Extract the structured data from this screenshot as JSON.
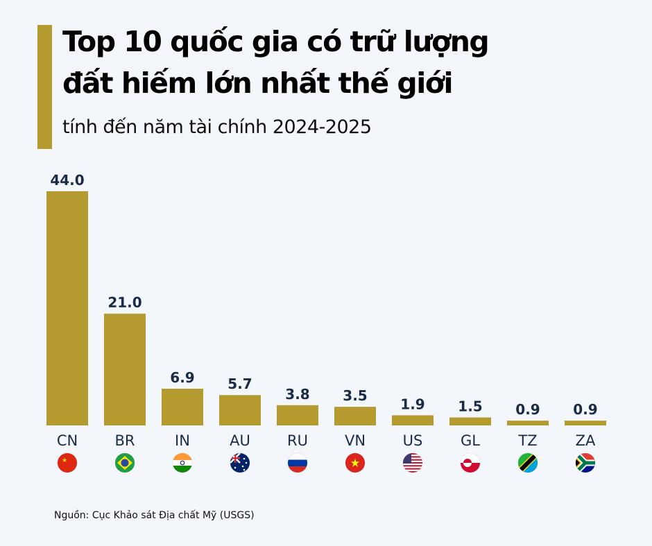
{
  "title_lines": [
    "Top 10 quốc gia có trữ lượng",
    "đất hiếm lớn nhất thế giới"
  ],
  "subtitle": "tính đến năm tài chính 2024-2025",
  "source": "Nguồn: Cục Khảo sát Địa chất Mỹ (USGS)",
  "colors": {
    "bar": "#b59a30",
    "value_label": "#1a2b45",
    "category_label": "#1a2b45",
    "background": "#f3f6fa"
  },
  "chart_data": {
    "type": "bar",
    "categories": [
      "CN",
      "BR",
      "IN",
      "AU",
      "RU",
      "VN",
      "US",
      "GL",
      "TZ",
      "ZA"
    ],
    "flags": [
      "china-flag",
      "brazil-flag",
      "india-flag",
      "australia-flag",
      "russia-flag",
      "vietnam-flag",
      "usa-flag",
      "greenland-flag",
      "tanzania-flag",
      "south-africa-flag"
    ],
    "values": [
      44.0,
      21.0,
      6.9,
      5.7,
      3.8,
      3.5,
      1.9,
      1.5,
      0.9,
      0.9
    ],
    "value_labels": [
      "44.0",
      "21.0",
      "6.9",
      "5.7",
      "3.8",
      "3.5",
      "1.9",
      "1.5",
      "0.9",
      "0.9"
    ],
    "ylim": [
      0,
      44
    ],
    "grid": false
  }
}
